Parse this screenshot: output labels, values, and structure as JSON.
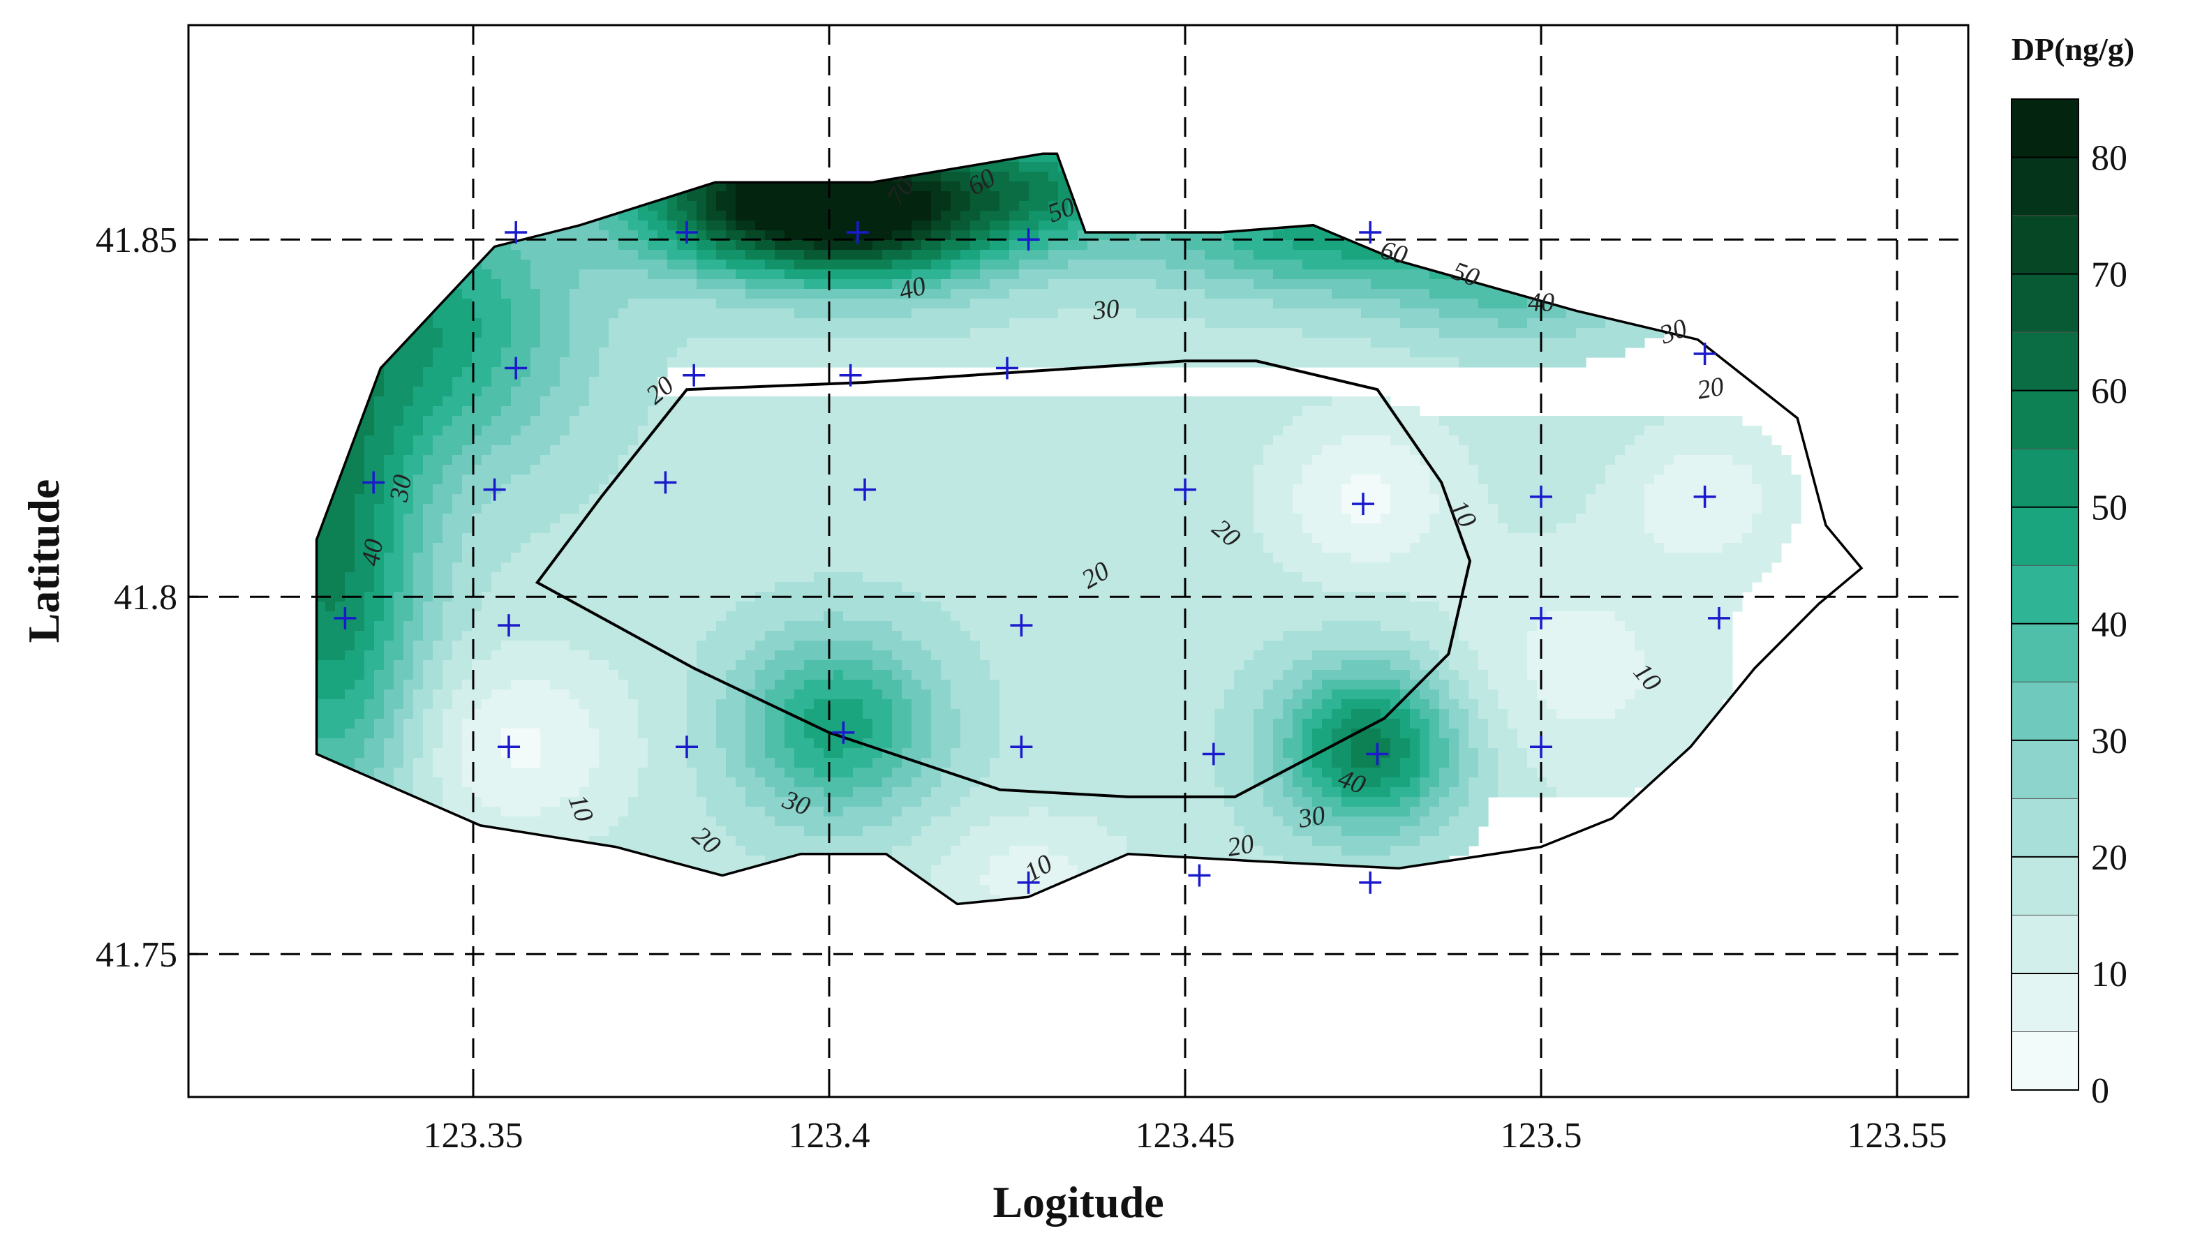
{
  "chart_data": {
    "type": "contour",
    "title": "",
    "xlabel": "Logitude",
    "ylabel": "Latitude",
    "xlim": [
      123.31,
      123.56
    ],
    "ylim": [
      41.73,
      41.88
    ],
    "x_ticks": [
      123.35,
      123.4,
      123.45,
      123.5,
      123.55
    ],
    "x_tick_labels": [
      "123.35",
      "123.4",
      "123.45",
      "123.5",
      "123.55"
    ],
    "y_ticks": [
      41.75,
      41.8,
      41.85
    ],
    "y_tick_labels": [
      "41.75",
      "41.8",
      "41.85"
    ],
    "grid": true,
    "grid_style": "dashed",
    "colorbar": {
      "title": "DP(ng/g)",
      "min": 0,
      "max": 85,
      "step": 5,
      "tick_values": [
        0,
        10,
        20,
        30,
        40,
        50,
        60,
        70,
        80
      ],
      "tick_labels": [
        "0",
        "10",
        "20",
        "30",
        "40",
        "50",
        "60",
        "70",
        "80"
      ],
      "colors": [
        "#f3fbfa",
        "#e3f5f3",
        "#d3efec",
        "#bfe8e3",
        "#a8dfd8",
        "#8dd5cc",
        "#6fcabd",
        "#4fbfaa",
        "#2fb496",
        "#1aa57f",
        "#129369",
        "#0d8054",
        "#0a6d43",
        "#085a34",
        "#064726",
        "#04341a",
        "#03240f"
      ]
    },
    "contour_labels": [
      "10",
      "20",
      "30",
      "40",
      "50",
      "60",
      "70"
    ],
    "sample_sites": [
      {
        "x": 123.356,
        "y": 41.851
      },
      {
        "x": 123.38,
        "y": 41.851
      },
      {
        "x": 123.404,
        "y": 41.851
      },
      {
        "x": 123.428,
        "y": 41.85
      },
      {
        "x": 123.476,
        "y": 41.851
      },
      {
        "x": 123.356,
        "y": 41.832
      },
      {
        "x": 123.381,
        "y": 41.831
      },
      {
        "x": 123.403,
        "y": 41.831
      },
      {
        "x": 123.425,
        "y": 41.832
      },
      {
        "x": 123.523,
        "y": 41.834
      },
      {
        "x": 123.336,
        "y": 41.816
      },
      {
        "x": 123.353,
        "y": 41.815
      },
      {
        "x": 123.377,
        "y": 41.816
      },
      {
        "x": 123.405,
        "y": 41.815
      },
      {
        "x": 123.45,
        "y": 41.815
      },
      {
        "x": 123.475,
        "y": 41.813
      },
      {
        "x": 123.5,
        "y": 41.814
      },
      {
        "x": 123.523,
        "y": 41.814
      },
      {
        "x": 123.332,
        "y": 41.797
      },
      {
        "x": 123.355,
        "y": 41.796
      },
      {
        "x": 123.427,
        "y": 41.796
      },
      {
        "x": 123.5,
        "y": 41.797
      },
      {
        "x": 123.525,
        "y": 41.797
      },
      {
        "x": 123.355,
        "y": 41.779
      },
      {
        "x": 123.38,
        "y": 41.779
      },
      {
        "x": 123.402,
        "y": 41.781
      },
      {
        "x": 123.427,
        "y": 41.779
      },
      {
        "x": 123.454,
        "y": 41.778
      },
      {
        "x": 123.477,
        "y": 41.778
      },
      {
        "x": 123.5,
        "y": 41.779
      },
      {
        "x": 123.428,
        "y": 41.76
      },
      {
        "x": 123.452,
        "y": 41.761
      },
      {
        "x": 123.476,
        "y": 41.76
      }
    ],
    "study_area_boundary": [
      [
        123.328,
        41.778
      ],
      [
        123.328,
        41.808
      ],
      [
        123.337,
        41.832
      ],
      [
        123.353,
        41.849
      ],
      [
        123.365,
        41.852
      ],
      [
        123.384,
        41.858
      ],
      [
        123.406,
        41.858
      ],
      [
        123.43,
        41.862
      ],
      [
        123.432,
        41.862
      ],
      [
        123.436,
        41.851
      ],
      [
        123.455,
        41.851
      ],
      [
        123.468,
        41.852
      ],
      [
        123.48,
        41.847
      ],
      [
        123.505,
        41.84
      ],
      [
        123.522,
        41.836
      ],
      [
        123.536,
        41.825
      ],
      [
        123.54,
        41.81
      ],
      [
        123.545,
        41.804
      ],
      [
        123.539,
        41.799
      ],
      [
        123.53,
        41.79
      ],
      [
        123.521,
        41.779
      ],
      [
        123.51,
        41.769
      ],
      [
        123.5,
        41.765
      ],
      [
        123.48,
        41.762
      ],
      [
        123.46,
        41.763
      ],
      [
        123.442,
        41.764
      ],
      [
        123.428,
        41.758
      ],
      [
        123.418,
        41.757
      ],
      [
        123.408,
        41.764
      ],
      [
        123.396,
        41.764
      ],
      [
        123.385,
        41.761
      ],
      [
        123.37,
        41.765
      ],
      [
        123.351,
        41.768
      ],
      [
        123.328,
        41.778
      ]
    ],
    "inner_boundary": [
      [
        123.38,
        41.829
      ],
      [
        123.405,
        41.83
      ],
      [
        123.45,
        41.833
      ],
      [
        123.46,
        41.833
      ],
      [
        123.477,
        41.829
      ],
      [
        123.486,
        41.816
      ],
      [
        123.49,
        41.805
      ],
      [
        123.487,
        41.792
      ],
      [
        123.478,
        41.783
      ],
      [
        123.457,
        41.772
      ],
      [
        123.442,
        41.772
      ],
      [
        123.424,
        41.773
      ],
      [
        123.4,
        41.781
      ],
      [
        123.381,
        41.79
      ],
      [
        123.359,
        41.802
      ],
      [
        123.368,
        41.814
      ],
      [
        123.38,
        41.829
      ]
    ],
    "field_sources": [
      {
        "x": 123.39,
        "y": 41.856,
        "amp": 52,
        "sx": 0.014,
        "sy": 0.007
      },
      {
        "x": 123.408,
        "y": 41.854,
        "amp": 50,
        "sx": 0.013,
        "sy": 0.007
      },
      {
        "x": 123.43,
        "y": 41.858,
        "amp": 26,
        "sx": 0.01,
        "sy": 0.006
      },
      {
        "x": 123.472,
        "y": 41.851,
        "amp": 30,
        "sx": 0.02,
        "sy": 0.006
      },
      {
        "x": 123.497,
        "y": 41.842,
        "amp": 14,
        "sx": 0.012,
        "sy": 0.005
      },
      {
        "x": 123.33,
        "y": 41.805,
        "amp": 38,
        "sx": 0.009,
        "sy": 0.025
      },
      {
        "x": 123.345,
        "y": 41.838,
        "amp": 28,
        "sx": 0.014,
        "sy": 0.014
      },
      {
        "x": 123.401,
        "y": 41.782,
        "amp": 30,
        "sx": 0.01,
        "sy": 0.009
      },
      {
        "x": 123.476,
        "y": 41.779,
        "amp": 40,
        "sx": 0.009,
        "sy": 0.008
      }
    ],
    "field_sinks": [
      {
        "x": 123.475,
        "y": 41.814,
        "amp": -14,
        "sx": 0.009,
        "sy": 0.008
      },
      {
        "x": 123.523,
        "y": 41.814,
        "amp": -12,
        "sx": 0.008,
        "sy": 0.007
      },
      {
        "x": 123.356,
        "y": 41.779,
        "amp": -14,
        "sx": 0.011,
        "sy": 0.009
      },
      {
        "x": 123.428,
        "y": 41.761,
        "amp": -10,
        "sx": 0.01,
        "sy": 0.006
      },
      {
        "x": 123.505,
        "y": 41.79,
        "amp": -10,
        "sx": 0.014,
        "sy": 0.012
      }
    ],
    "field_base": 18
  },
  "colors": {
    "marker": "#1a1acc",
    "boundary": "#000000",
    "contour_line": "#333333",
    "grid": "#000000"
  }
}
